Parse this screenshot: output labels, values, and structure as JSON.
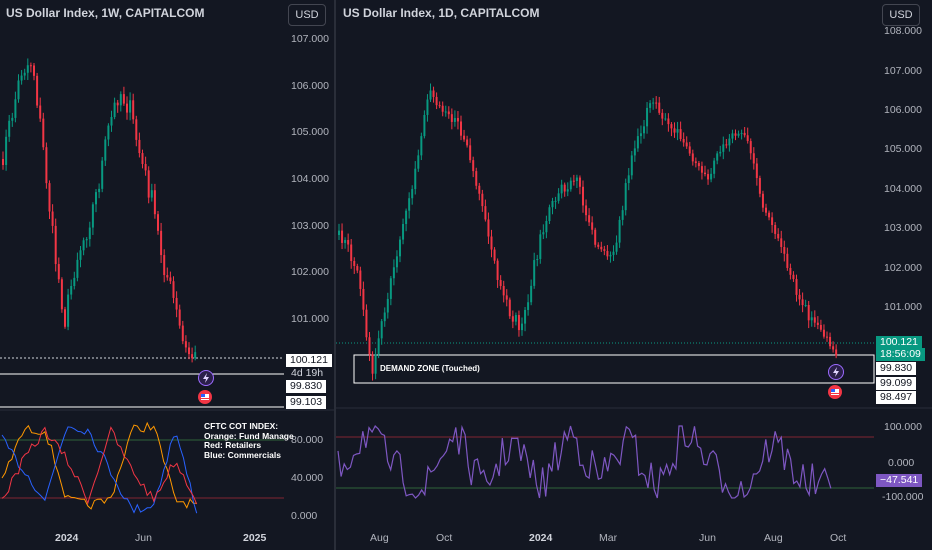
{
  "left_chart": {
    "title": "US Dollar Index, 1W, CAPITALCOM",
    "currency": "USD",
    "price_ticks": [
      "107.000",
      "106.000",
      "105.000",
      "104.000",
      "103.000",
      "102.000",
      "101.000"
    ],
    "price_labels": {
      "current": "100.121",
      "countdown": "4d 19h",
      "level_1": "99.830",
      "level_2": "99.103"
    },
    "indicator_ticks": [
      "80.000",
      "40.000",
      "0.000"
    ],
    "time_ticks": [
      "2024",
      "Jun",
      "2025"
    ],
    "cot_note": [
      "CFTC COT INDEX:",
      "Orange: Fund Manage",
      "Red: Retailers",
      "Blue: Commercials"
    ]
  },
  "right_chart": {
    "title": "US Dollar Index, 1D, CAPITALCOM",
    "currency": "USD",
    "price_ticks": [
      "108.000",
      "107.000",
      "106.000",
      "105.000",
      "104.000",
      "103.000",
      "102.000",
      "101.000"
    ],
    "price_labels": {
      "current": "100.121",
      "countdown": "18:56:09",
      "level_1": "99.830",
      "level_2": "99.099",
      "level_3": "98.497"
    },
    "zone_label": "DEMAND ZONE (Touched)",
    "indicator_ticks": [
      "100.000",
      "0.000",
      "-100.000"
    ],
    "indicator_value": "−47.541",
    "time_ticks": [
      "Aug",
      "Oct",
      "2024",
      "Mar",
      "Jun",
      "Aug",
      "Oct"
    ]
  },
  "colors": {
    "up": "#089981",
    "down": "#f23645",
    "purple": "#7e57c2",
    "orange": "#ff9800",
    "blue": "#2962ff",
    "red": "#f23645",
    "bg": "#131722"
  },
  "icons": [
    "lightning-icon",
    "us-flag-icon"
  ]
}
